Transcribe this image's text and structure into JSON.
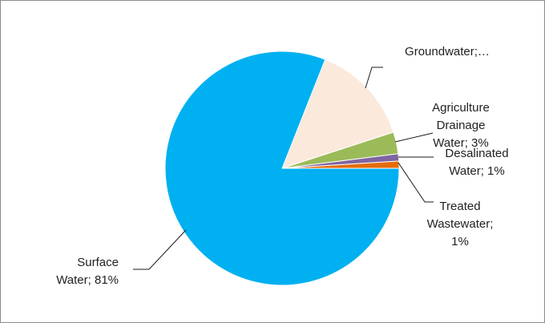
{
  "chart_data": {
    "type": "pie",
    "title": "",
    "slices": [
      {
        "name": "Treated Wastewater",
        "value": 1,
        "label_lines": [
          "Treated",
          "Wastewater;",
          "1%"
        ],
        "color": "#e46c0a"
      },
      {
        "name": "Desalinated Water",
        "value": 1,
        "label_lines": [
          "Desalinated",
          "Water; 1%"
        ],
        "color": "#8064a2"
      },
      {
        "name": "Agriculture Drainage Water",
        "value": 3,
        "label_lines": [
          "Agriculture",
          "Drainage",
          "Water; 3%"
        ],
        "color": "#9bbb59"
      },
      {
        "name": "Groundwater",
        "value": 14,
        "label_lines": [
          "Groundwater;…"
        ],
        "color": "#fbe9db"
      },
      {
        "name": "Surface Water",
        "value": 81,
        "label_lines": [
          "Surface",
          "Water; 81%"
        ],
        "color": "#00b0f0"
      }
    ]
  }
}
